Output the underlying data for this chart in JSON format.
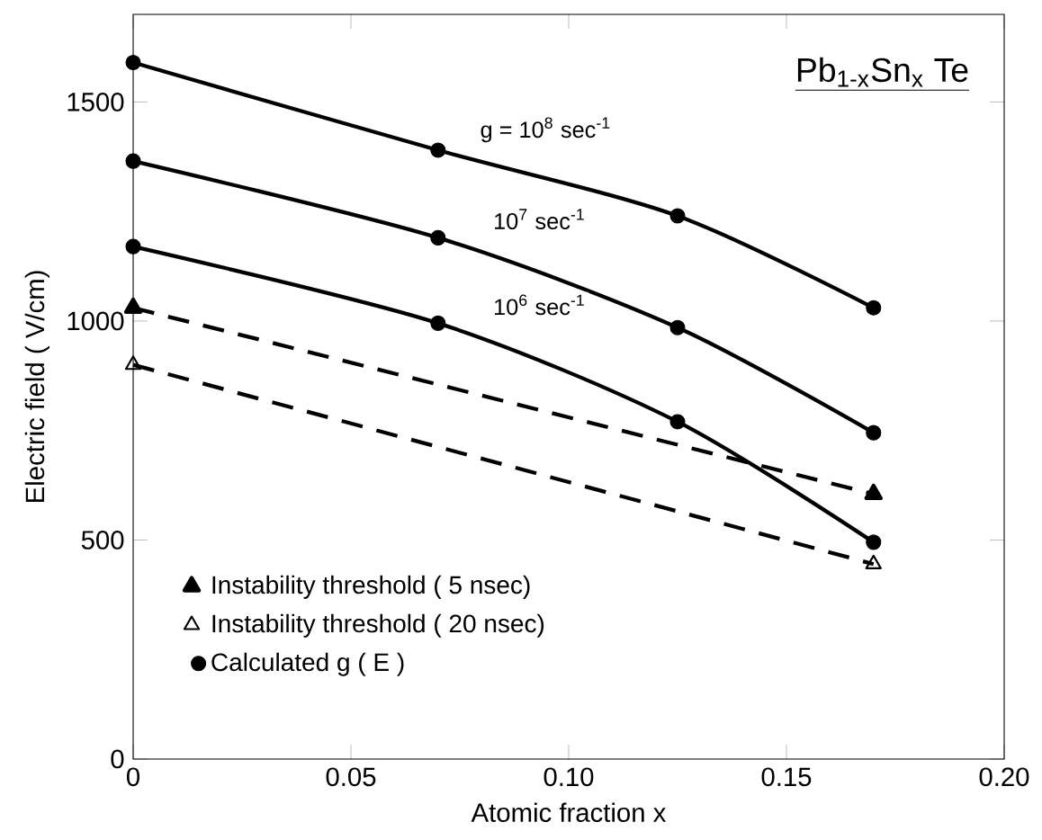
{
  "chart_data": {
    "type": "line",
    "title": "Pb$_{1-x}$Sn$_{x}$ Te",
    "xlabel": "Atomic fraction x",
    "ylabel": "Electric field ( V/cm)",
    "xlim": [
      0,
      0.2
    ],
    "ylim": [
      0,
      1700
    ],
    "xticks": [
      0,
      0.05,
      {
        "value": 0.1,
        "label": "0.10"
      },
      0.15,
      {
        "value": 0.2,
        "label": "0.20"
      }
    ],
    "yticks": [
      0,
      500,
      1000,
      1500
    ],
    "grid": false,
    "legend": "bottom left",
    "series": [
      {
        "name": "Instability threshold ( 5 nsec)",
        "line_style": "dashed",
        "marker": "triangle",
        "color": "#000000",
        "x": [
          0,
          0.17
        ],
        "values": [
          1030,
          605
        ]
      },
      {
        "name": "Instability threshold ( 20 nsec)",
        "line_style": "dashed",
        "marker": "triangle-open",
        "color": "#000000",
        "x": [
          0,
          0.17
        ],
        "values": [
          900,
          445
        ]
      },
      {
        "name": "Calculated g ( E )",
        "type": "scatter",
        "marker": "circle",
        "color": "#000000",
        "x": [
          0,
          0.07,
          0.125,
          0.17,
          0,
          0.07,
          0.125,
          0.17,
          0,
          0.07,
          0.125,
          0.17
        ],
        "values": [
          1590,
          1390,
          1240,
          1030,
          1365,
          1190,
          985,
          745,
          1170,
          995,
          770,
          495
        ]
      },
      {
        "line_style": "solid",
        "marker": "none",
        "color": "#000000",
        "x": [
          0,
          0.07,
          0.125,
          0.17
        ],
        "values": [
          1590,
          1390,
          1240,
          1030
        ]
      },
      {
        "line_style": "solid",
        "marker": "none",
        "color": "#000000",
        "x": [
          0,
          0.07,
          0.125,
          0.17
        ],
        "values": [
          1365,
          1190,
          985,
          745
        ]
      },
      {
        "line_style": "solid",
        "marker": "none",
        "color": "#000000",
        "x": [
          0,
          0.07,
          0.125,
          0.17
        ],
        "values": [
          1170,
          995,
          770,
          495
        ]
      }
    ],
    "annotations": [
      "g = 10$^{8}$ sec$^{-1}$",
      "10$^{7}$ sec$^{-1}$",
      "10$^{6}$ sec$^{-1}$"
    ]
  }
}
